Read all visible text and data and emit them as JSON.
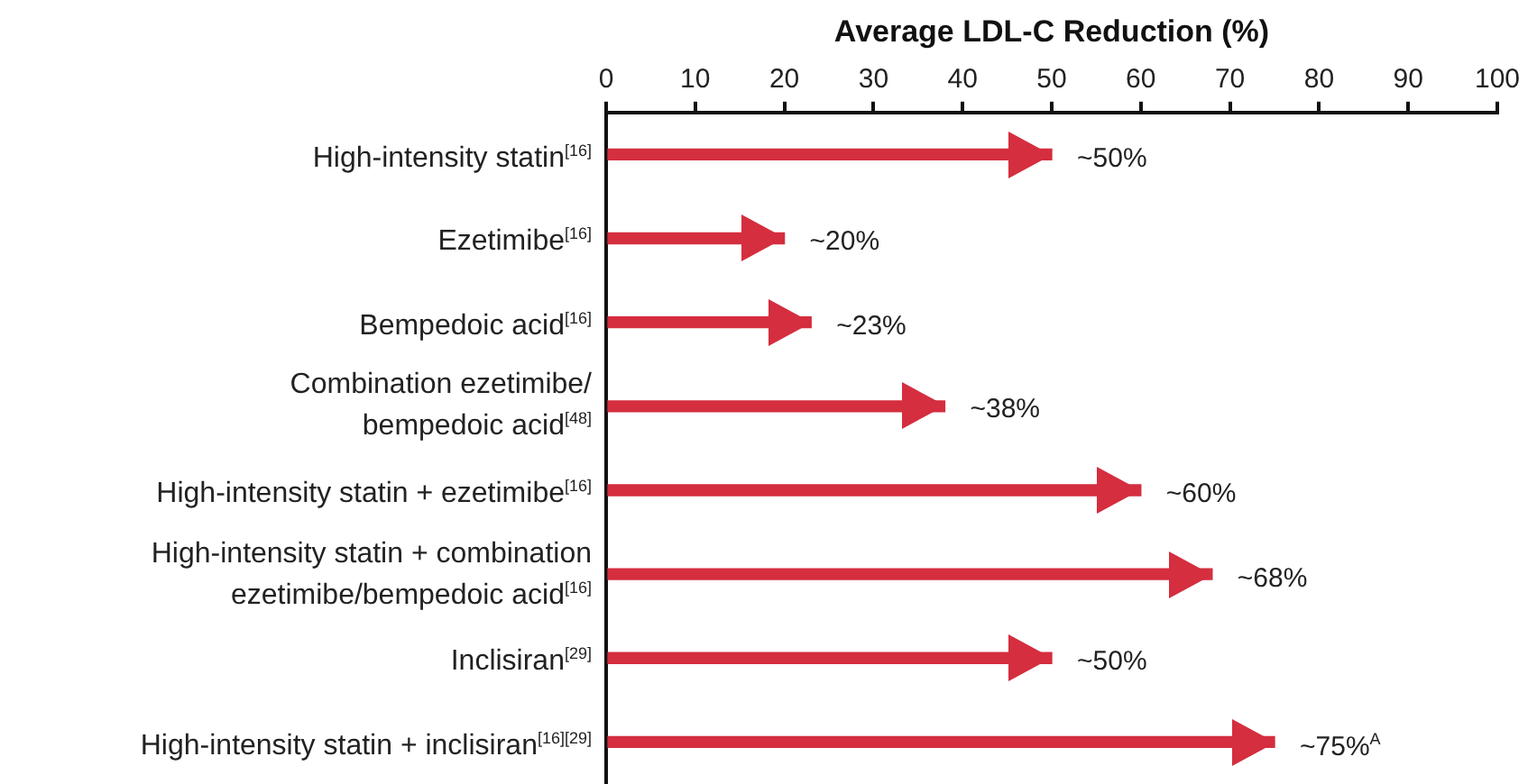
{
  "chart_data": {
    "type": "bar",
    "orientation": "horizontal",
    "xlabel": "Average LDL-C Reduction (%)",
    "categories": [
      "High-intensity statin$^{[16]}$",
      "Ezetimibe$^{[16]}$",
      "Bempedoic acid$^{[16]}$",
      "Combination ezetimibe/\nbempedoic acid$^{[48]}$",
      "High-intensity statin + ezetimibe$^{[16]}$",
      "High-intensity statin + combination\nezetimibe/bempedoic acid$^{[16]}$",
      "Inclisiran$^{[29]}$",
      "High-intensity statin + inclisiran$^{[16][29]}$"
    ],
    "values": [
      50,
      20,
      23,
      38,
      60,
      68,
      50,
      75
    ],
    "color": "#d42e3f",
    "value_labels": [
      "~50%",
      "~20%",
      "~23%",
      "~38%",
      "~60%",
      "~68%",
      "~50%",
      "~75%$^{A}$"
    ],
    "xlim": [
      0,
      100
    ],
    "xticks": [
      0,
      10,
      20,
      30,
      40,
      50,
      60,
      70,
      80,
      90,
      100
    ]
  }
}
